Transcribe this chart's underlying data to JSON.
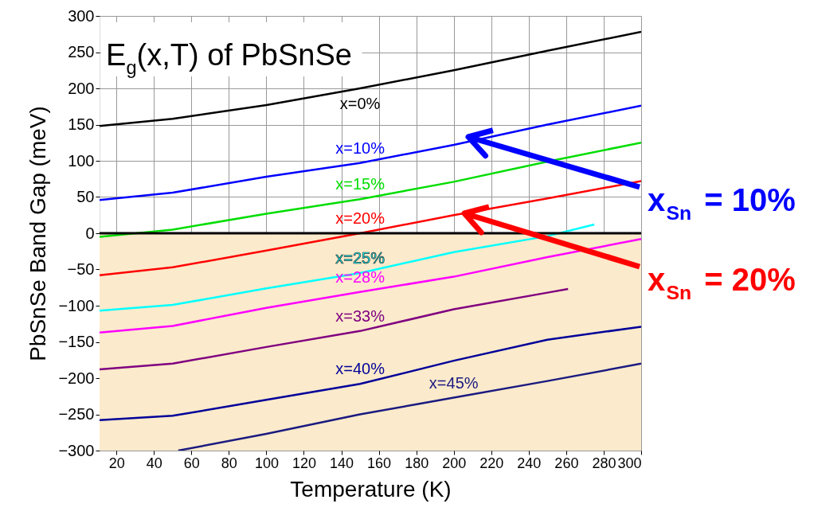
{
  "chart_data": {
    "type": "line",
    "title": "E$_{g}$(x,T) of PbSnSe",
    "xlabel": "Temperature (K)",
    "ylabel": "PbSnSe Band Gap (meV)",
    "xlim": [
      11,
      300
    ],
    "ylim": [
      -300,
      300
    ],
    "xticks": [
      20,
      40,
      60,
      80,
      100,
      120,
      140,
      160,
      180,
      200,
      220,
      240,
      260,
      280,
      300
    ],
    "yticks": [
      -300,
      -250,
      -200,
      -150,
      -100,
      -50,
      0,
      50,
      100,
      150,
      200,
      250,
      300
    ],
    "grid": true,
    "legend": false,
    "line_style": "solid",
    "marker": "none",
    "x": [
      11,
      50,
      100,
      150,
      200,
      250,
      300
    ],
    "series": [
      {
        "name": "x=0%",
        "color": "#000000",
        "values": [
          148,
          158,
          177,
          200,
          225,
          252,
          278
        ]
      },
      {
        "name": "x=10%",
        "color": "#0000ff",
        "values": [
          46,
          56,
          78,
          97,
          122,
          150,
          176
        ]
      },
      {
        "name": "x=15%",
        "color": "#00dd00",
        "values": [
          -5,
          5,
          27,
          47,
          71,
          99,
          125
        ]
      },
      {
        "name": "x=20%",
        "color": "#ff0000",
        "values": [
          -58,
          -47,
          -24,
          0,
          25,
          48,
          72
        ]
      },
      {
        "name": "x=25%",
        "color": "#00ffff",
        "x": [
          11,
          50,
          100,
          150,
          200,
          250,
          275
        ],
        "values": [
          -107,
          -99,
          -76,
          -55,
          -26,
          -4,
          12
        ]
      },
      {
        "name": "x=28%",
        "color": "#ff00ff",
        "values": [
          -137,
          -128,
          -103,
          -81,
          -60,
          -33,
          -8
        ]
      },
      {
        "name": "x=33%",
        "color": "#800080",
        "x": [
          11,
          50,
          100,
          150,
          200,
          250,
          261
        ],
        "values": [
          -188,
          -180,
          -157,
          -135,
          -105,
          -82,
          -77
        ]
      },
      {
        "name": "x=40%",
        "color": "#000099",
        "values": [
          -258,
          -252,
          -230,
          -208,
          -176,
          -147,
          -129
        ]
      },
      {
        "name": "x=45%",
        "color": "#1a1a80",
        "x": [
          53,
          100,
          150,
          200,
          250,
          300
        ],
        "values": [
          -300,
          -277,
          -250,
          -227,
          -204,
          -180
        ]
      }
    ],
    "bands": [
      {
        "axis": "y",
        "from": -300,
        "to": 0,
        "color": "#fbeacb"
      }
    ],
    "ref_lines": [
      {
        "axis": "y",
        "value": 0,
        "color": "#000000"
      }
    ],
    "annotations": [
      "x$_{Sn}$ = 10%",
      "x$_{Sn}$ = 20%"
    ]
  }
}
